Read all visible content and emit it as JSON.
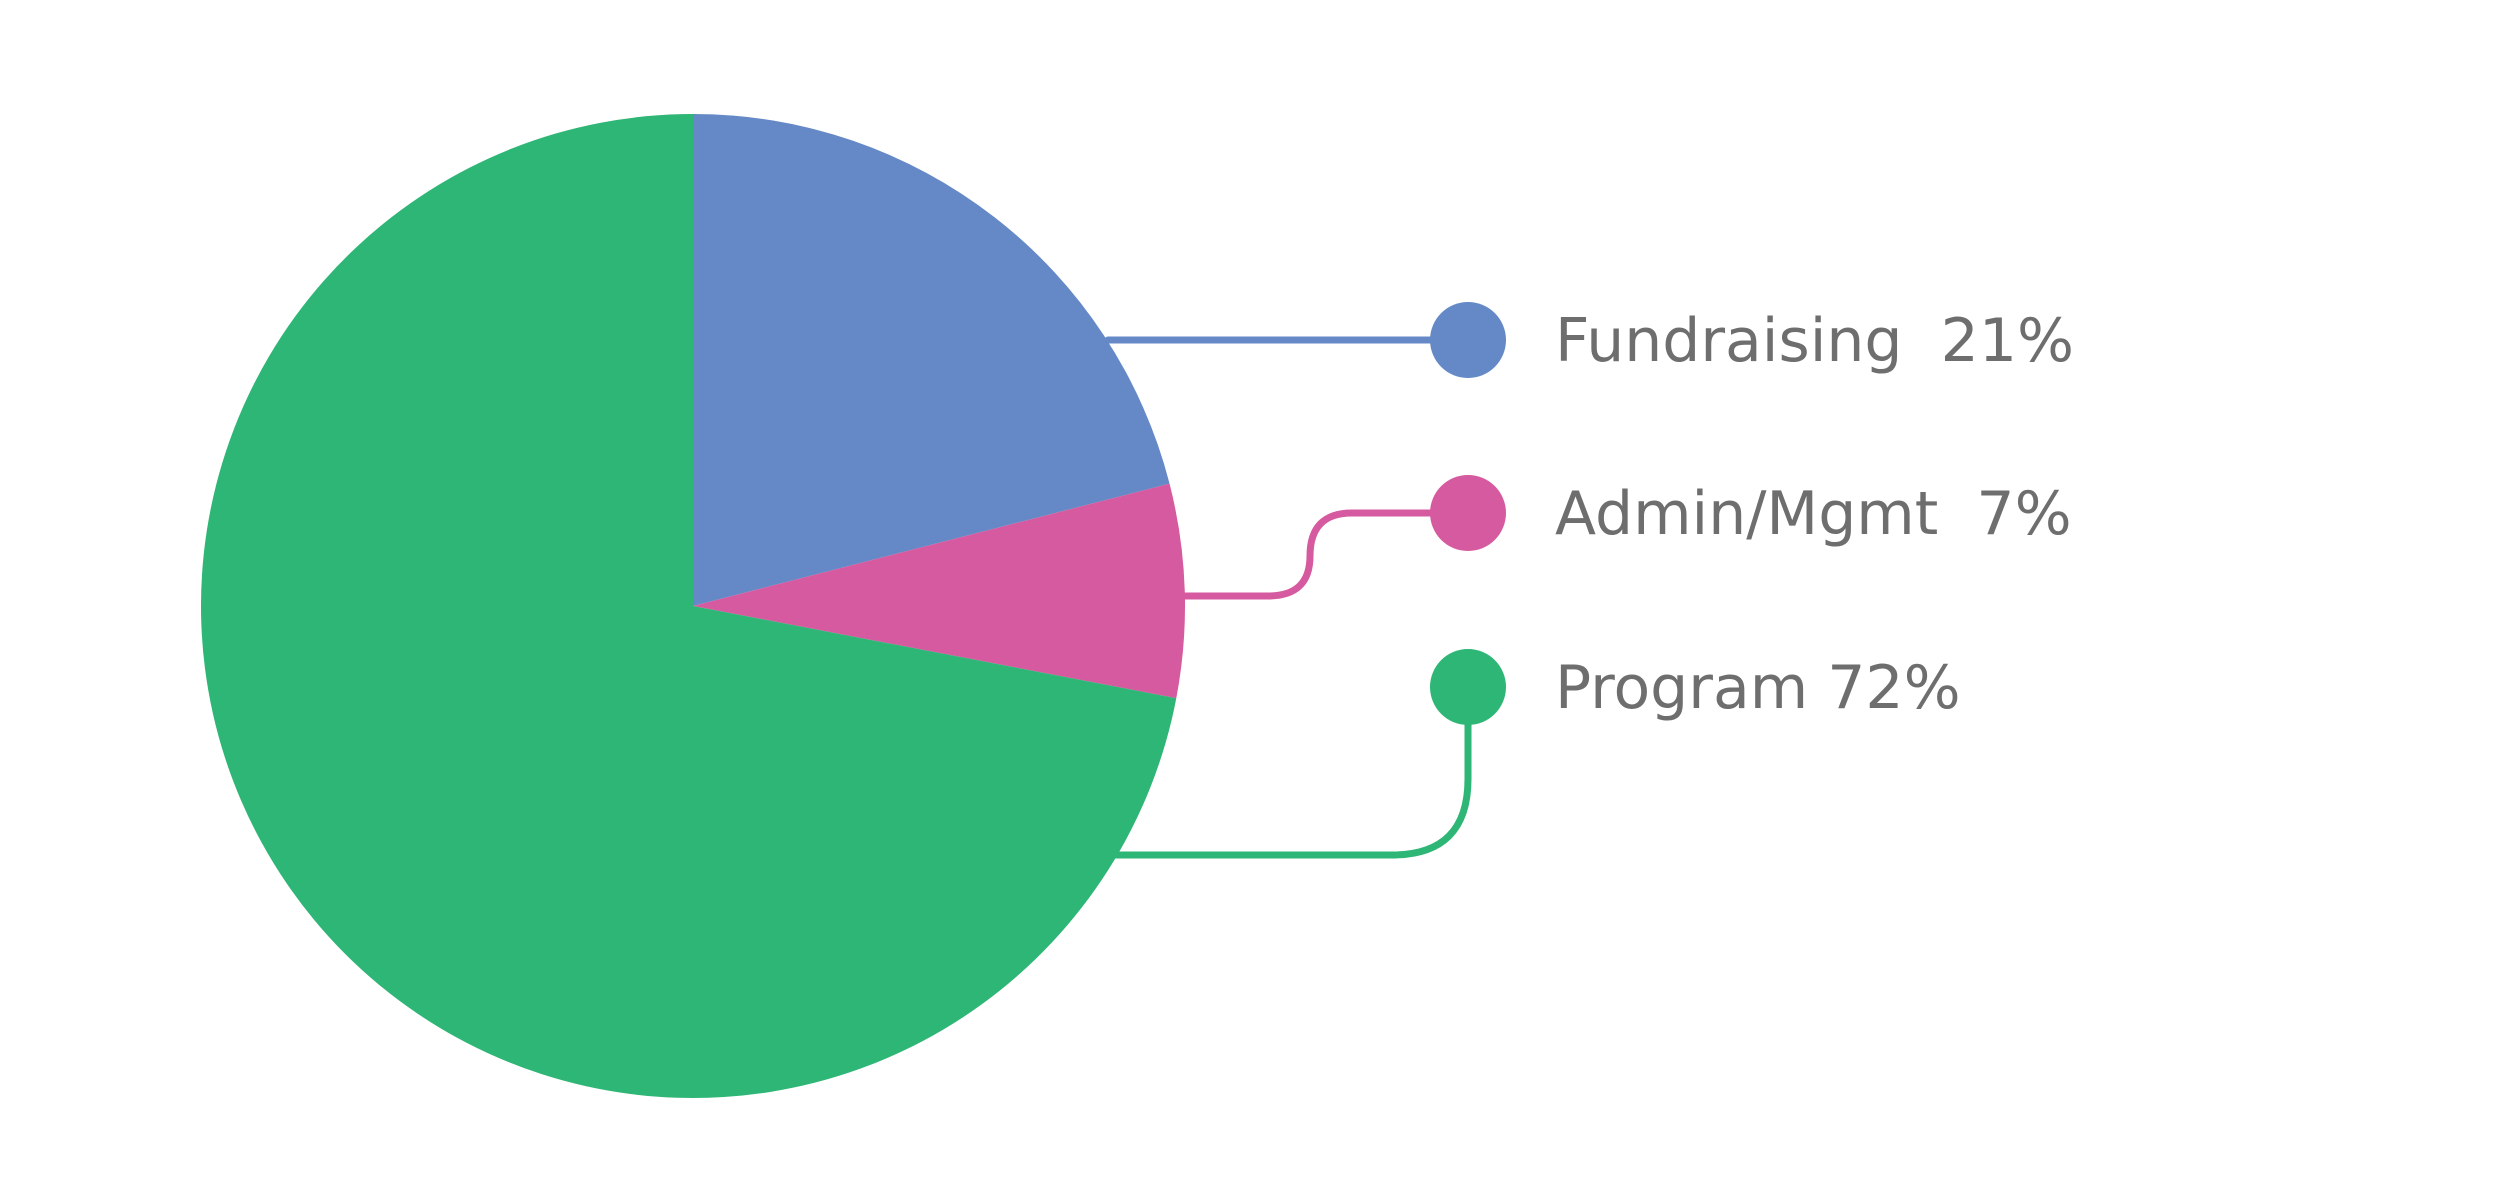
{
  "chart_data": {
    "type": "pie",
    "title": "",
    "slices": [
      {
        "label": "Fundraising",
        "value": 21,
        "display": "Fundraising  21%",
        "color": "#6489c6"
      },
      {
        "label": "Admin/Mgmt",
        "value": 7,
        "display": "Admin/Mgmt  7%",
        "color": "#d65a9f"
      },
      {
        "label": "Program",
        "value": 72,
        "display": "Program 72%",
        "color": "#2db675"
      }
    ],
    "start_angle": "12 o'clock",
    "direction": "clockwise",
    "legend_placement": "right"
  }
}
